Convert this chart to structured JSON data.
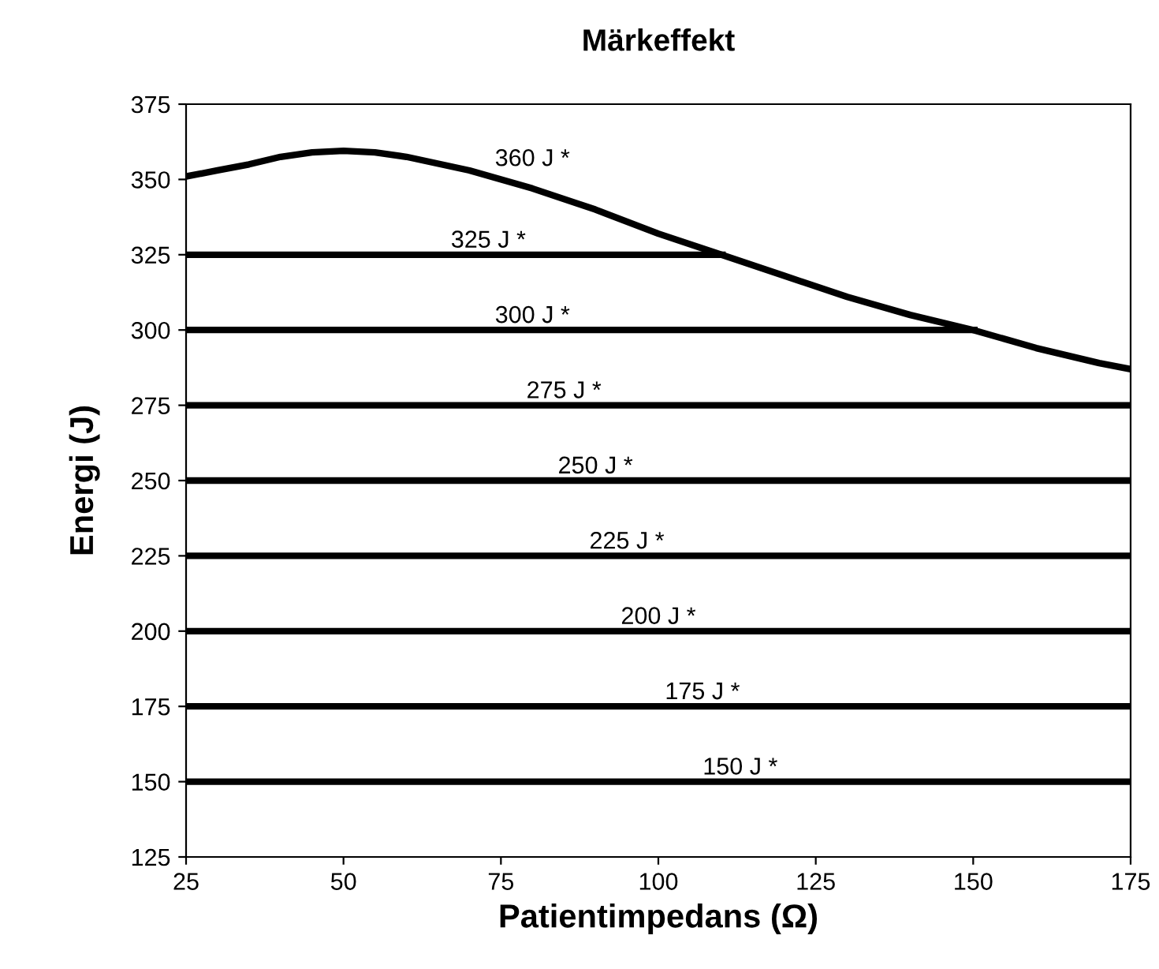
{
  "chart_data": {
    "type": "line",
    "title": "Märkeffekt",
    "xlabel": "Patientimpedans (Ω)",
    "ylabel": "Energi (J)",
    "xlim": [
      25,
      175
    ],
    "xticks": [
      25,
      50,
      75,
      100,
      125,
      150,
      175
    ],
    "ylim": [
      125,
      375
    ],
    "yticks": [
      125,
      150,
      175,
      200,
      225,
      250,
      275,
      300,
      325,
      350,
      375
    ],
    "grid": false,
    "marker": "none",
    "line_style": "solid",
    "series": [
      {
        "color": "#000000",
        "x": [
          25,
          30,
          35,
          40,
          45,
          50,
          55,
          60,
          70,
          80,
          90,
          100,
          110,
          120,
          130,
          140,
          150,
          160,
          170,
          175
        ],
        "values": [
          351,
          353,
          355,
          357.5,
          359,
          359.5,
          359,
          357.5,
          353,
          347,
          340,
          332,
          325,
          318,
          311,
          305,
          300,
          294,
          289,
          287
        ]
      },
      {
        "color": "#000000",
        "x": [
          25,
          110.7
        ],
        "values": [
          325,
          325
        ]
      },
      {
        "color": "#000000",
        "x": [
          25,
          150.7
        ],
        "values": [
          300,
          300
        ]
      },
      {
        "color": "#000000",
        "x": [
          25,
          175
        ],
        "values": [
          275,
          275
        ]
      },
      {
        "color": "#000000",
        "x": [
          25,
          175
        ],
        "values": [
          250,
          250
        ]
      },
      {
        "color": "#000000",
        "x": [
          25,
          175
        ],
        "values": [
          225,
          225
        ]
      },
      {
        "color": "#000000",
        "x": [
          25,
          175
        ],
        "values": [
          200,
          200
        ]
      },
      {
        "color": "#000000",
        "x": [
          25,
          175
        ],
        "values": [
          175,
          175
        ]
      },
      {
        "color": "#000000",
        "x": [
          25,
          175
        ],
        "values": [
          150,
          150
        ]
      }
    ],
    "annotations": [
      {
        "text": "360 J *",
        "x": 80,
        "y": 347
      },
      {
        "text": "325 J *",
        "x": 73,
        "y": 325
      },
      {
        "text": "300 J *",
        "x": 80,
        "y": 300
      },
      {
        "text": "275 J *",
        "x": 85,
        "y": 275
      },
      {
        "text": "250 J *",
        "x": 90,
        "y": 250
      },
      {
        "text": "225 J *",
        "x": 95,
        "y": 225
      },
      {
        "text": "200 J *",
        "x": 100,
        "y": 200
      },
      {
        "text": "175 J *",
        "x": 107,
        "y": 175
      },
      {
        "text": "150 J *",
        "x": 113,
        "y": 150
      }
    ]
  }
}
